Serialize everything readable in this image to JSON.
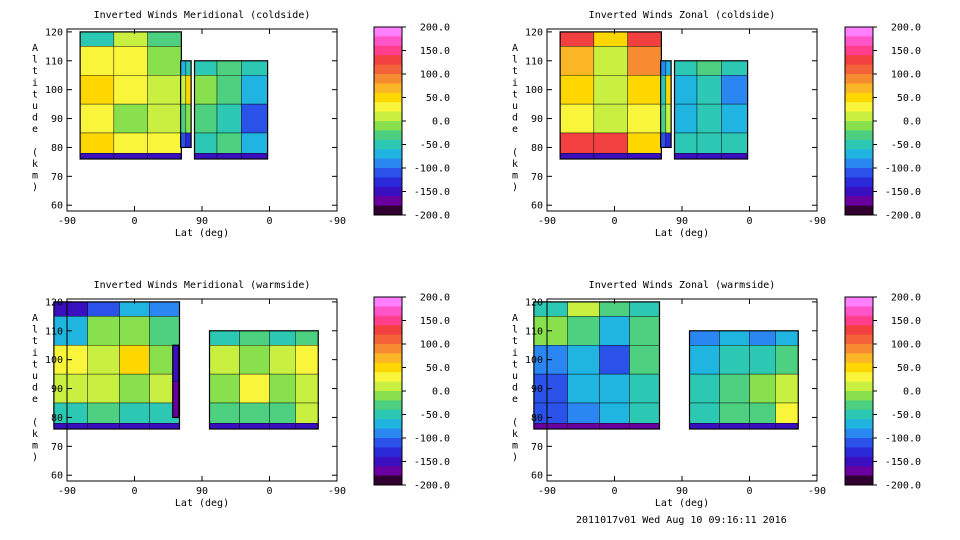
{
  "footer": "2011017v01 Wed Aug 10 09:16:11 2016",
  "colorbar": {
    "ticks": [
      "200.0",
      "150.0",
      "100.0",
      "50.0",
      "0.0",
      "-50.0",
      "-100.0",
      "-150.0",
      "-200.0"
    ],
    "colors": [
      "#ff7fff",
      "#ff55c8",
      "#ff3f8c",
      "#f24040",
      "#f4623a",
      "#f78b32",
      "#fbb626",
      "#ffd700",
      "#f9f53a",
      "#c9f040",
      "#88e04c",
      "#4dd080",
      "#2cc8b4",
      "#20b4e0",
      "#2a86f0",
      "#2a52e8",
      "#2a2ad8",
      "#3a0fc0",
      "#6a00a0",
      "#300030"
    ]
  },
  "chart_data": [
    {
      "type": "heatmap",
      "title": "Inverted Winds Meridional (coldside)",
      "xlabel": "Lat (deg)",
      "ylabel": "Altitude (km)",
      "x_ticks": [
        "-90",
        "0",
        "90",
        "0",
        "-90"
      ],
      "y_ticks": [
        60,
        70,
        80,
        90,
        100,
        110,
        120
      ],
      "ylim": [
        58,
        121
      ],
      "zlim": [
        -200,
        200
      ],
      "segments": [
        {
          "x": [
            -50,
            -5,
            40
          ],
          "y": [
            120,
            110,
            100,
            90,
            80,
            76
          ],
          "values": [
            [
              -40,
              10,
              -30
            ],
            [
              40,
              30,
              0
            ],
            [
              50,
              30,
              10
            ],
            [
              40,
              0,
              20
            ],
            [
              60,
              40,
              30
            ],
            [
              -150,
              -150,
              -150
            ]
          ]
        },
        {
          "x": [
            65,
            72
          ],
          "y": [
            110,
            100,
            90,
            80
          ],
          "values": [
            [
              -60,
              -40
            ],
            [
              20,
              60
            ],
            [
              -20,
              0
            ],
            [
              -100,
              -120
            ]
          ]
        },
        {
          "x": [
            95,
            125,
            160
          ],
          "y": [
            110,
            100,
            90,
            80,
            76
          ],
          "values": [
            [
              -40,
              -30,
              -50
            ],
            [
              -10,
              -20,
              -60
            ],
            [
              -30,
              -40,
              -100
            ],
            [
              -40,
              -30,
              -60
            ],
            [
              -150,
              -150,
              -150
            ]
          ]
        }
      ]
    },
    {
      "type": "heatmap",
      "title": "Inverted Winds Zonal (coldside)",
      "xlabel": "Lat (deg)",
      "ylabel": "Altitude (km)",
      "x_ticks": [
        "-90",
        "0",
        "90",
        "0",
        "-90"
      ],
      "y_ticks": [
        60,
        70,
        80,
        90,
        100,
        110,
        120
      ],
      "ylim": [
        58,
        121
      ],
      "zlim": [
        -200,
        200
      ],
      "segments": [
        {
          "x": [
            -50,
            -5,
            40
          ],
          "y": [
            120,
            110,
            100,
            90,
            80,
            76
          ],
          "values": [
            [
              120,
              60,
              130
            ],
            [
              70,
              20,
              90
            ],
            [
              60,
              10,
              60
            ],
            [
              40,
              10,
              40
            ],
            [
              130,
              120,
              60
            ],
            [
              -150,
              -150,
              -150
            ]
          ]
        },
        {
          "x": [
            65,
            72
          ],
          "y": [
            110,
            100,
            90,
            80
          ],
          "values": [
            [
              -80,
              -60
            ],
            [
              -40,
              60
            ],
            [
              -20,
              20
            ],
            [
              -100,
              -120
            ]
          ]
        },
        {
          "x": [
            95,
            125,
            160
          ],
          "y": [
            110,
            100,
            90,
            80,
            76
          ],
          "values": [
            [
              -40,
              -30,
              -40
            ],
            [
              -60,
              -50,
              -80
            ],
            [
              -60,
              -40,
              -60
            ],
            [
              -50,
              -40,
              -50
            ],
            [
              -150,
              -150,
              -150
            ]
          ]
        }
      ]
    },
    {
      "type": "heatmap",
      "title": "Inverted Winds Meridional (warmside)",
      "xlabel": "Lat (deg)",
      "ylabel": "Altitude (km)",
      "x_ticks": [
        "-90",
        "0",
        "90",
        "0",
        "-90"
      ],
      "y_ticks": [
        60,
        70,
        80,
        90,
        100,
        110,
        120
      ],
      "ylim": [
        58,
        121
      ],
      "zlim": [
        -200,
        200
      ],
      "segments": [
        {
          "x": [
            -85,
            -40,
            0,
            40
          ],
          "y": [
            120,
            110,
            100,
            90,
            80,
            76
          ],
          "values": [
            [
              -140,
              -110,
              -60,
              -80
            ],
            [
              -60,
              -10,
              0,
              -30
            ],
            [
              30,
              20,
              50,
              0
            ],
            [
              10,
              20,
              0,
              10
            ],
            [
              -40,
              -30,
              -50,
              -40
            ],
            [
              -150,
              -150,
              -150,
              -150
            ]
          ]
        },
        {
          "x": [
            55
          ],
          "y": [
            105,
            80
          ],
          "values": [
            [
              -150
            ],
            [
              -160
            ]
          ]
        },
        {
          "x": [
            120,
            160,
            200,
            230
          ],
          "y": [
            110,
            100,
            90,
            80,
            76
          ],
          "values": [
            [
              -40,
              -30,
              -50,
              -20
            ],
            [
              20,
              -10,
              10,
              40
            ],
            [
              0,
              30,
              0,
              10
            ],
            [
              -30,
              -20,
              -30,
              10
            ],
            [
              -150,
              -150,
              -150,
              -150
            ]
          ]
        }
      ]
    },
    {
      "type": "heatmap",
      "title": "Inverted Winds Zonal (warmside)",
      "xlabel": "Lat (deg)",
      "ylabel": "Altitude (km)",
      "x_ticks": [
        "-90",
        "0",
        "90",
        "0",
        "-90"
      ],
      "y_ticks": [
        60,
        70,
        80,
        90,
        100,
        110,
        120
      ],
      "ylim": [
        58,
        121
      ],
      "zlim": [
        -200,
        200
      ],
      "segments": [
        {
          "x": [
            -85,
            -40,
            0,
            40
          ],
          "y": [
            120,
            110,
            100,
            90,
            80,
            76
          ],
          "values": [
            [
              -40,
              10,
              -30,
              -40
            ],
            [
              0,
              -30,
              -60,
              -20
            ],
            [
              -80,
              -60,
              -100,
              -30
            ],
            [
              -100,
              -60,
              -60,
              -40
            ],
            [
              -110,
              -80,
              -60,
              -40
            ],
            [
              -160,
              -160,
              -160,
              -160
            ]
          ]
        },
        {
          "x": [
            120,
            160,
            200,
            230
          ],
          "y": [
            110,
            100,
            90,
            80,
            76
          ],
          "values": [
            [
              -90,
              -70,
              -80,
              -60
            ],
            [
              -60,
              -40,
              -40,
              -30
            ],
            [
              -40,
              -20,
              0,
              10
            ],
            [
              -50,
              -30,
              -20,
              40
            ],
            [
              -150,
              -150,
              -150,
              -150
            ]
          ]
        }
      ]
    }
  ]
}
